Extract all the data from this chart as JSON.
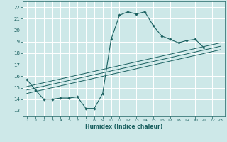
{
  "title": "",
  "xlabel": "Humidex (Indice chaleur)",
  "ylabel": "",
  "bg_color": "#cde8e8",
  "line_color": "#1a6060",
  "grid_color": "#ffffff",
  "xlim": [
    -0.5,
    23.5
  ],
  "ylim": [
    12.5,
    22.5
  ],
  "xticks": [
    0,
    1,
    2,
    3,
    4,
    5,
    6,
    7,
    8,
    9,
    10,
    11,
    12,
    13,
    14,
    15,
    16,
    17,
    18,
    19,
    20,
    21,
    22,
    23
  ],
  "yticks": [
    13,
    14,
    15,
    16,
    17,
    18,
    19,
    20,
    21,
    22
  ],
  "main_series": {
    "x": [
      0,
      1,
      2,
      3,
      4,
      5,
      6,
      7,
      8,
      9,
      10,
      11,
      12,
      13,
      14,
      15,
      16,
      17,
      18,
      19,
      20,
      21
    ],
    "y": [
      15.7,
      14.8,
      14.0,
      14.0,
      14.1,
      14.1,
      14.2,
      13.2,
      13.2,
      14.5,
      19.2,
      21.3,
      21.6,
      21.4,
      21.6,
      20.4,
      19.5,
      19.2,
      18.9,
      19.1,
      19.2,
      18.5
    ]
  },
  "reg_lines": [
    {
      "x": [
        0,
        23
      ],
      "y": [
        14.5,
        18.3
      ]
    },
    {
      "x": [
        0,
        23
      ],
      "y": [
        14.8,
        18.6
      ]
    },
    {
      "x": [
        0,
        23
      ],
      "y": [
        15.1,
        18.9
      ]
    }
  ]
}
